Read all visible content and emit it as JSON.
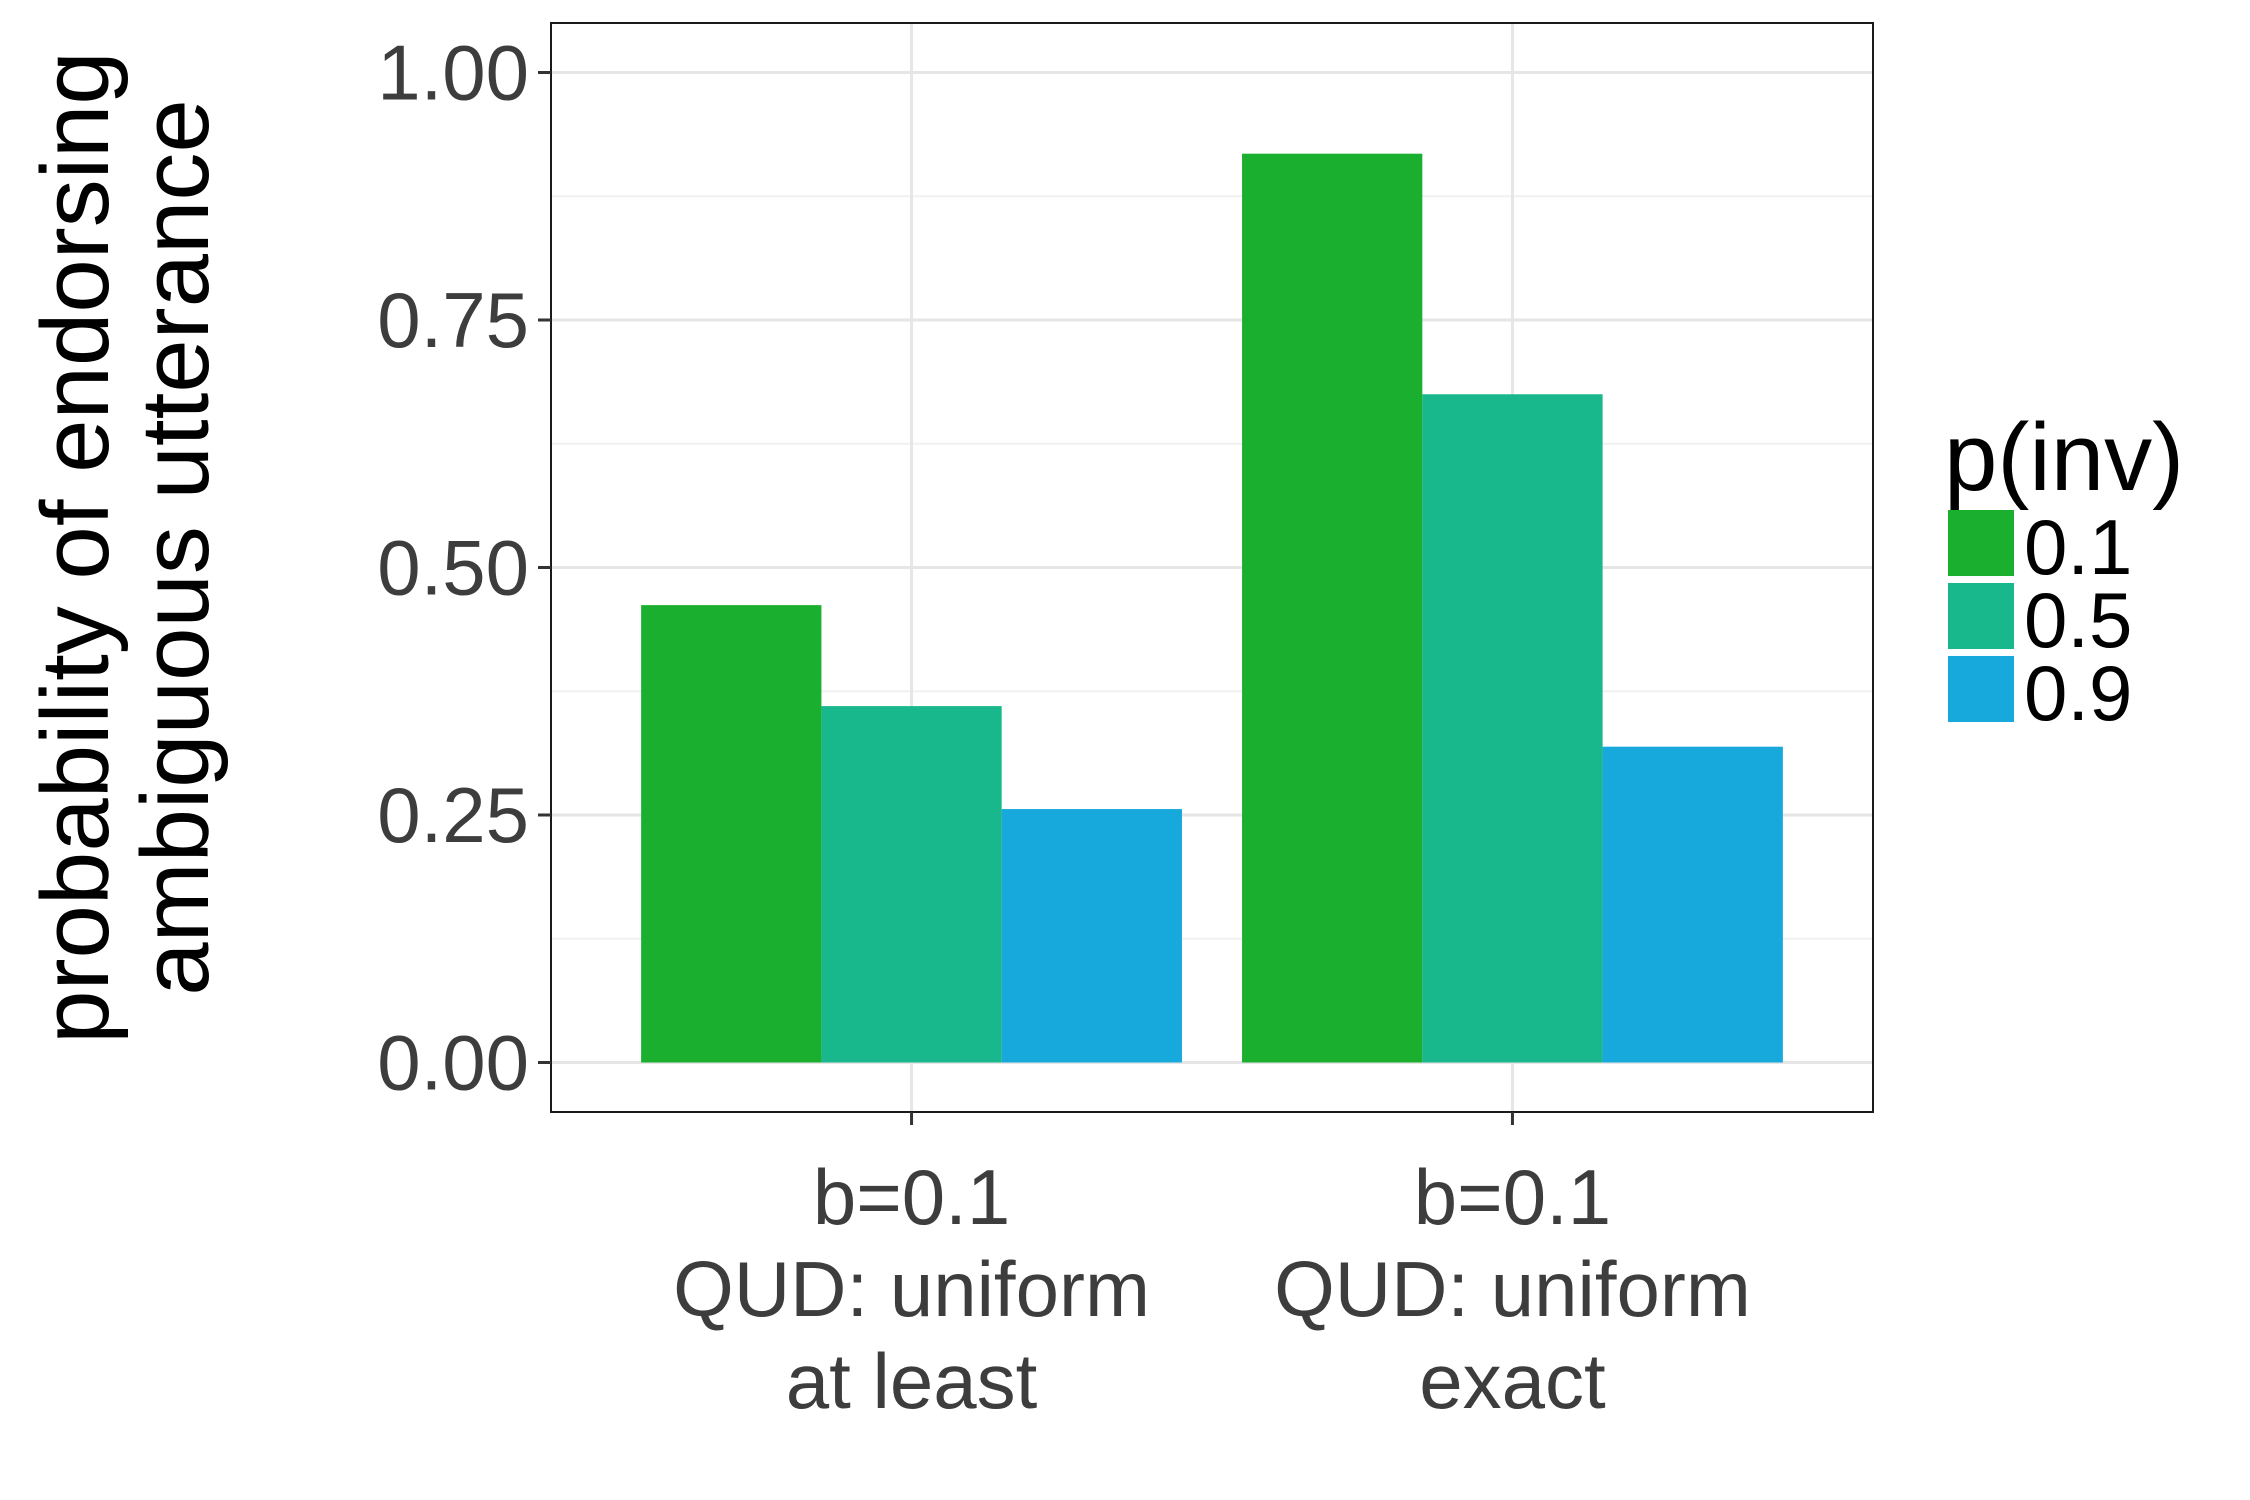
{
  "chart_data": {
    "type": "bar",
    "title": "",
    "xlabel": "",
    "ylabel": [
      "probability of endorsing",
      "ambiguous utterance"
    ],
    "categories": [
      [
        "b=0.1",
        "QUD: uniform",
        "at least"
      ],
      [
        "b=0.1",
        "QUD: uniform",
        "exact"
      ]
    ],
    "series": [
      {
        "name": "0.1",
        "color": "#1aaf2e",
        "values": [
          0.462,
          0.918
        ]
      },
      {
        "name": "0.5",
        "color": "#19b78c",
        "values": [
          0.36,
          0.675
        ]
      },
      {
        "name": "0.9",
        "color": "#17a9dc",
        "values": [
          0.256,
          0.319
        ]
      }
    ],
    "ylim": [
      -0.05,
      1.05
    ],
    "yticks": [
      0,
      0.25,
      0.5,
      0.75,
      1.0
    ],
    "ytick_labels": [
      "0.00",
      "0.25",
      "0.50",
      "0.75",
      "1.00"
    ],
    "grid": true,
    "legend": {
      "title": "p(inv)",
      "position": "right"
    }
  }
}
